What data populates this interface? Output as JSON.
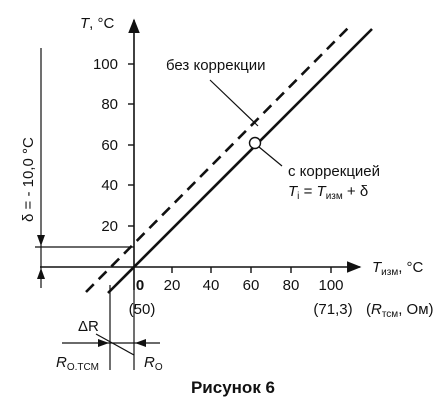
{
  "caption": "Рисунок 6",
  "axes": {
    "y_symbol": "T",
    "y_unit": ", °C",
    "y_ticks": [
      "20",
      "40",
      "60",
      "80",
      "100"
    ],
    "x_symbol": "T",
    "x_sub": "изм",
    "x_unit": ", °C",
    "x_ticks": [
      "0",
      "20",
      "40",
      "60",
      "80",
      "100"
    ]
  },
  "resistance": {
    "start": "(50)",
    "end": "(71,3)",
    "axis_open": "(",
    "axis_symbol": "R",
    "axis_sub": "тсм",
    "axis_unit": ", Ом)"
  },
  "lines": {
    "uncorrected": {
      "label": "без коррекции",
      "style": "dashed"
    },
    "corrected": {
      "label": "с коррекцией",
      "formula": {
        "lhs": "T",
        "lhs_sub": "i",
        "eq": " = ",
        "rhs": "T",
        "rhs_sub": "изм",
        "tail": " + δ"
      }
    }
  },
  "offset_label": "δ = - 10,0 °C",
  "delta_r": "ΔR",
  "r_otsm": {
    "symbol": "R",
    "sub": "О.ТСМ"
  },
  "r_o": {
    "symbol": "R",
    "sub": "О"
  },
  "colors": {
    "ink": "#111111",
    "background": "#ffffff"
  }
}
